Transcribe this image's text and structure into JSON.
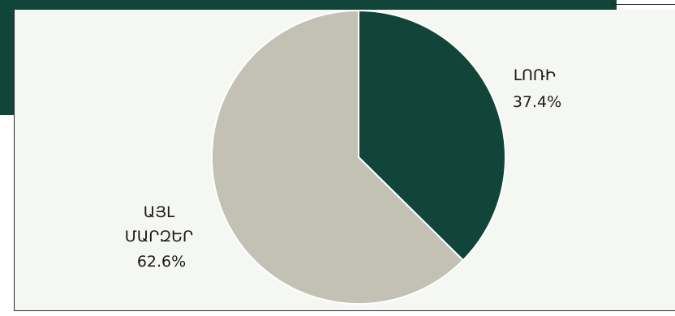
{
  "chart_data": {
    "type": "pie",
    "title": "",
    "colors": [
      "#11453a",
      "#c3c1b4"
    ],
    "slices": [
      {
        "label": "ԼՈՌԻ",
        "label_lines": [
          "ԼՈՌԻ"
        ],
        "value": 37.4,
        "value_label": "37.4%"
      },
      {
        "label": "ԱՅԼ ՄԱՐԶԵՐ",
        "label_lines": [
          "ԱՅԼ",
          "ՄԱՐԶԵՐ"
        ],
        "value": 62.6,
        "value_label": "62.6%"
      }
    ]
  }
}
